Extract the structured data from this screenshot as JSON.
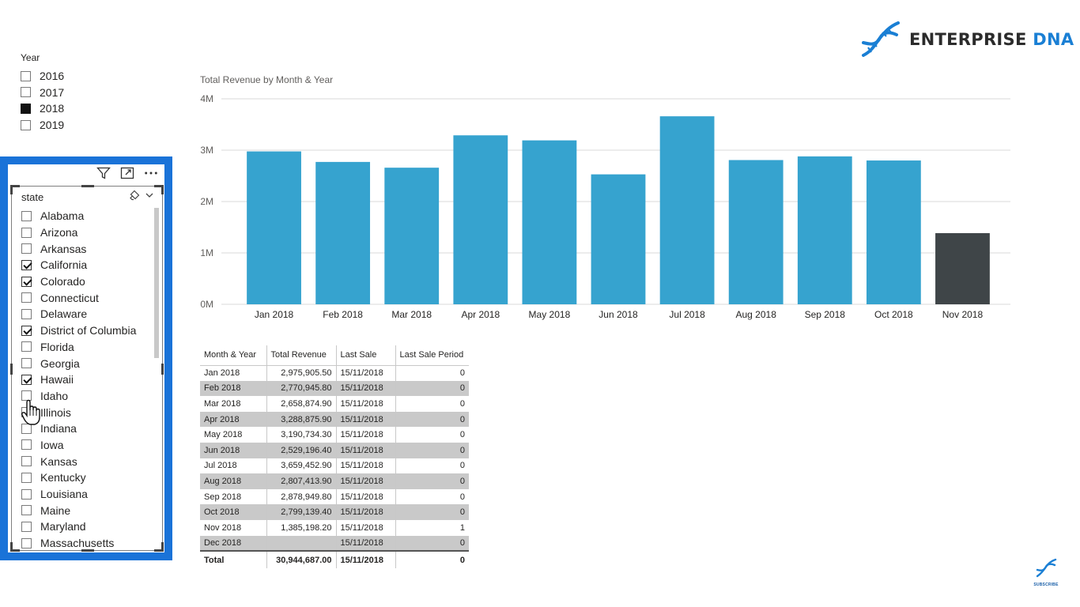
{
  "year_slicer": {
    "title": "Year",
    "items": [
      {
        "label": "2016",
        "state": "empty"
      },
      {
        "label": "2017",
        "state": "empty"
      },
      {
        "label": "2018",
        "state": "filled"
      },
      {
        "label": "2019",
        "state": "empty"
      }
    ]
  },
  "state_slicer": {
    "title": "state",
    "toolbar_icons": [
      "filter-icon",
      "focus-mode-icon",
      "more-options-icon"
    ],
    "items": [
      {
        "label": "Alabama",
        "checked": false
      },
      {
        "label": "Arizona",
        "checked": false
      },
      {
        "label": "Arkansas",
        "checked": false
      },
      {
        "label": "California",
        "checked": true
      },
      {
        "label": "Colorado",
        "checked": true
      },
      {
        "label": "Connecticut",
        "checked": false
      },
      {
        "label": "Delaware",
        "checked": false
      },
      {
        "label": "District of Columbia",
        "checked": true
      },
      {
        "label": "Florida",
        "checked": false
      },
      {
        "label": "Georgia",
        "checked": false
      },
      {
        "label": "Hawaii",
        "checked": true
      },
      {
        "label": "Idaho",
        "checked": false
      },
      {
        "label": "Illinois",
        "checked": false
      },
      {
        "label": "Indiana",
        "checked": false
      },
      {
        "label": "Iowa",
        "checked": false
      },
      {
        "label": "Kansas",
        "checked": false
      },
      {
        "label": "Kentucky",
        "checked": false
      },
      {
        "label": "Louisiana",
        "checked": false
      },
      {
        "label": "Maine",
        "checked": false
      },
      {
        "label": "Maryland",
        "checked": false
      },
      {
        "label": "Massachusetts",
        "checked": false
      }
    ],
    "frame_color": "#1a73d8"
  },
  "logo": {
    "brand_main": "ENTERPRISE",
    "brand_accent": "DNA"
  },
  "chart_data": {
    "type": "bar",
    "title": "Total Revenue by Month & Year",
    "categories": [
      "Jan 2018",
      "Feb 2018",
      "Mar 2018",
      "Apr 2018",
      "May 2018",
      "Jun 2018",
      "Jul 2018",
      "Aug 2018",
      "Sep 2018",
      "Oct 2018",
      "Nov 2018"
    ],
    "values": [
      2975905.5,
      2770945.8,
      2658874.9,
      3288875.9,
      3190734.3,
      2529196.4,
      3659452.9,
      2807413.9,
      2878949.8,
      2799139.4,
      1385198.2
    ],
    "y_ticks": [
      {
        "value": 0,
        "label": "0M"
      },
      {
        "value": 1000000,
        "label": "1M"
      },
      {
        "value": 2000000,
        "label": "2M"
      },
      {
        "value": 3000000,
        "label": "3M"
      },
      {
        "value": 4000000,
        "label": "4M"
      }
    ],
    "ylim": [
      0,
      4000000
    ],
    "grid": true,
    "colors": {
      "bar": "#36a3cf",
      "highlight": "#3f4548",
      "grid": "#d9d9d9"
    },
    "highlight_index": 10
  },
  "table": {
    "columns": [
      "Month & Year",
      "Total Revenue",
      "Last Sale",
      "Last Sale Period"
    ],
    "rows": [
      [
        "Jan 2018",
        "2,975,905.50",
        "15/11/2018",
        "0"
      ],
      [
        "Feb 2018",
        "2,770,945.80",
        "15/11/2018",
        "0"
      ],
      [
        "Mar 2018",
        "2,658,874.90",
        "15/11/2018",
        "0"
      ],
      [
        "Apr 2018",
        "3,288,875.90",
        "15/11/2018",
        "0"
      ],
      [
        "May 2018",
        "3,190,734.30",
        "15/11/2018",
        "0"
      ],
      [
        "Jun 2018",
        "2,529,196.40",
        "15/11/2018",
        "0"
      ],
      [
        "Jul 2018",
        "3,659,452.90",
        "15/11/2018",
        "0"
      ],
      [
        "Aug 2018",
        "2,807,413.90",
        "15/11/2018",
        "0"
      ],
      [
        "Sep 2018",
        "2,878,949.80",
        "15/11/2018",
        "0"
      ],
      [
        "Oct 2018",
        "2,799,139.40",
        "15/11/2018",
        "0"
      ],
      [
        "Nov 2018",
        "1,385,198.20",
        "15/11/2018",
        "1"
      ],
      [
        "Dec 2018",
        "",
        "15/11/2018",
        "0"
      ]
    ],
    "total": [
      "Total",
      "30,944,687.00",
      "15/11/2018",
      "0"
    ]
  },
  "subscribe": {
    "label": "SUBSCRIBE"
  }
}
